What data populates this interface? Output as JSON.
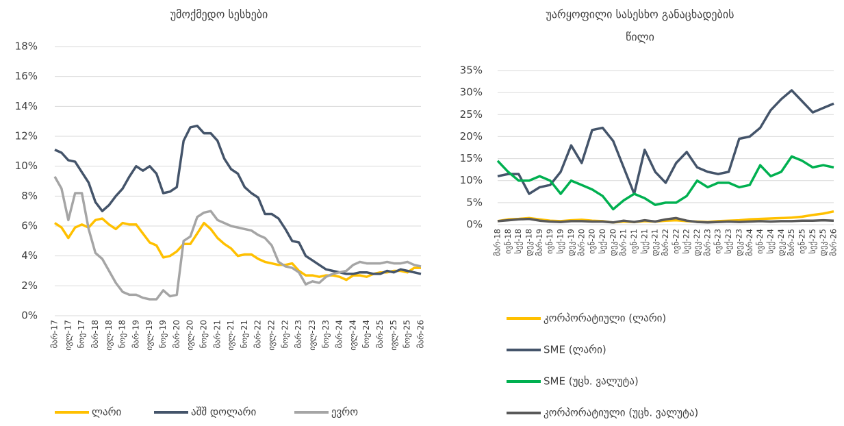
{
  "chart_data": [
    {
      "type": "line",
      "title": "უმოქმედო სესხები",
      "categories": [
        "მარ-17",
        null,
        "ივლ-17",
        null,
        "ნოე-17",
        null,
        "მარ-18",
        null,
        "ივლ-18",
        null,
        "ნოე-18",
        null,
        "მარ-19",
        null,
        "ივლ-19",
        null,
        "ნოე-19",
        null,
        "მარ-20",
        null,
        "ივლ-20",
        null,
        "ნოე-20",
        null,
        "მარ-21",
        null,
        "ივლ-21",
        null,
        "ნოე-21",
        null,
        "მარ-22",
        null,
        "ივლ-22",
        null,
        "ნოე-22",
        null,
        "მარ-23",
        null,
        "ივლ-23",
        null,
        "ნოე-23",
        null,
        "მარ-24",
        null,
        "ივლ-24",
        null,
        "ნოე-24",
        null,
        "მარ-25",
        null,
        "ივლ-25",
        null,
        "ნოე-25",
        null,
        "მარ-26"
      ],
      "series": [
        {
          "name": "ლარი",
          "color": "#ffc000",
          "values": [
            6.2,
            5.9,
            5.2,
            5.9,
            6.1,
            5.9,
            6.4,
            6.5,
            6.1,
            5.8,
            6.2,
            6.1,
            6.1,
            5.5,
            4.9,
            4.7,
            3.9,
            4.0,
            4.3,
            4.8,
            4.8,
            5.5,
            6.2,
            5.8,
            5.2,
            4.8,
            4.5,
            4.0,
            4.1,
            4.1,
            3.8,
            3.6,
            3.5,
            3.4,
            3.4,
            3.5,
            3.0,
            2.7,
            2.7,
            2.6,
            2.7,
            2.7,
            2.6,
            2.4,
            2.7,
            2.7,
            2.6,
            2.8,
            2.9,
            2.9,
            3.0,
            3.0,
            2.9,
            3.2,
            3.2
          ]
        },
        {
          "name": "აშშ დოლარი",
          "color": "#44546a",
          "values": [
            11.1,
            10.9,
            10.4,
            10.3,
            9.6,
            8.9,
            7.6,
            7.0,
            7.4,
            8.0,
            8.5,
            9.3,
            10.0,
            9.7,
            10.0,
            9.5,
            8.2,
            8.3,
            8.6,
            11.7,
            12.6,
            12.7,
            12.2,
            12.2,
            11.7,
            10.5,
            9.8,
            9.5,
            8.6,
            8.2,
            7.9,
            6.8,
            6.8,
            6.5,
            5.8,
            5.0,
            4.9,
            4.0,
            3.7,
            3.4,
            3.1,
            3.0,
            2.9,
            2.8,
            2.8,
            2.9,
            2.9,
            2.8,
            2.8,
            3.0,
            2.9,
            3.1,
            3.0,
            2.9,
            2.8
          ]
        },
        {
          "name": "ევრო",
          "color": "#a5a5a5",
          "values": [
            9.3,
            8.5,
            6.4,
            8.2,
            8.2,
            5.8,
            4.2,
            3.8,
            3.0,
            2.2,
            1.6,
            1.4,
            1.4,
            1.2,
            1.1,
            1.1,
            1.7,
            1.3,
            1.4,
            5.0,
            5.3,
            6.6,
            6.9,
            7.0,
            6.4,
            6.2,
            6.0,
            5.9,
            5.8,
            5.7,
            5.4,
            5.2,
            4.7,
            3.6,
            3.3,
            3.2,
            2.9,
            2.1,
            2.3,
            2.2,
            2.6,
            2.8,
            2.9,
            3.0,
            3.4,
            3.6,
            3.5,
            3.5,
            3.5,
            3.6,
            3.5,
            3.5,
            3.6,
            3.4,
            3.3
          ]
        }
      ],
      "ylim": [
        0,
        18
      ],
      "yticks": [
        {
          "value": 0,
          "label": "0%"
        },
        {
          "value": 2,
          "label": "2%"
        },
        {
          "value": 4,
          "label": "4%"
        },
        {
          "value": 6,
          "label": "6%"
        },
        {
          "value": 8,
          "label": "8%"
        },
        {
          "value": 10,
          "label": "10%"
        },
        {
          "value": 12,
          "label": "12%"
        },
        {
          "value": 14,
          "label": "14%"
        },
        {
          "value": 16,
          "label": "16%"
        },
        {
          "value": 18,
          "label": "18%"
        }
      ],
      "grid": true,
      "legend": "bottom"
    },
    {
      "type": "line",
      "title": [
        "უარყოფილი სასესხო განაცხადების",
        "წილი"
      ],
      "categories": [
        "მარ-18",
        "ივნ-18",
        "სექ-18",
        "დეკ-18",
        "მარ-19",
        "ივნ-19",
        "სექ-19",
        "დეკ-19",
        "მარ-20",
        "ივნ-20",
        "სექ-20",
        "დეკ-20",
        "მარ-21",
        "ივნ-21",
        "სექ-21",
        "დეკ-21",
        "მარ-22",
        "ივნ-22",
        "სექ-22",
        "დეკ-22",
        "მარ-23",
        "ივნ-23",
        "სექ-23",
        "დეკ-23",
        "მარ-24",
        "ივნ-24",
        "სექ-24",
        "დეკ-24",
        "მარ-25",
        "ივნ-25",
        "სექ-25",
        "დეკ-25",
        "მარ-26"
      ],
      "series": [
        {
          "name": "კორპორატიული (ლარი)",
          "color": "#ffc000",
          "values": [
            0.8,
            1.2,
            1.3,
            1.5,
            1.2,
            0.9,
            0.8,
            1.0,
            1.1,
            0.9,
            0.8,
            0.5,
            0.7,
            0.6,
            0.8,
            0.7,
            0.9,
            1.0,
            0.8,
            0.7,
            0.6,
            0.8,
            0.9,
            1.0,
            1.2,
            1.3,
            1.4,
            1.5,
            1.6,
            1.8,
            2.2,
            2.5,
            3.0
          ]
        },
        {
          "name": "SME (ლარი)",
          "color": "#44546a",
          "values": [
            11,
            11.5,
            11.5,
            7,
            8.5,
            9,
            12,
            18,
            14,
            21.5,
            22,
            19,
            13,
            7,
            17,
            12,
            9.5,
            14,
            16.5,
            13,
            12,
            11.5,
            12,
            19.5,
            20,
            22,
            26,
            28.5,
            30.5,
            28,
            25.5,
            26.5,
            27.5
          ]
        },
        {
          "name": "SME (უცხ. ვალუტა)",
          "color": "#00b050",
          "values": [
            14.5,
            12,
            10,
            10,
            11,
            10,
            7,
            10,
            9,
            8,
            6.5,
            3.5,
            5.5,
            7,
            6,
            4.5,
            5,
            5,
            6.5,
            10,
            8.5,
            9.5,
            9.5,
            8.5,
            9,
            13.5,
            11,
            12,
            15.5,
            14.5,
            13,
            13.5,
            13
          ]
        },
        {
          "name": "კორპორატიული (უცხ. ვალუტა)",
          "color": "#595959",
          "values": [
            0.8,
            1.0,
            1.2,
            1.3,
            0.9,
            0.7,
            0.6,
            0.8,
            0.8,
            0.7,
            0.7,
            0.5,
            0.9,
            0.6,
            1.0,
            0.7,
            1.2,
            1.5,
            0.9,
            0.6,
            0.5,
            0.6,
            0.7,
            0.6,
            0.7,
            0.8,
            0.7,
            0.8,
            0.8,
            0.9,
            0.9,
            1.0,
            0.9
          ]
        }
      ],
      "ylim": [
        0,
        35
      ],
      "yticks": [
        {
          "value": 0,
          "label": "0%"
        },
        {
          "value": 5,
          "label": "5%"
        },
        {
          "value": 10,
          "label": "10%"
        },
        {
          "value": 15,
          "label": "15%"
        },
        {
          "value": 20,
          "label": "20%"
        },
        {
          "value": 25,
          "label": "25%"
        },
        {
          "value": 30,
          "label": "30%"
        },
        {
          "value": 35,
          "label": "35%"
        }
      ],
      "grid": true,
      "legend": "bottom"
    }
  ]
}
